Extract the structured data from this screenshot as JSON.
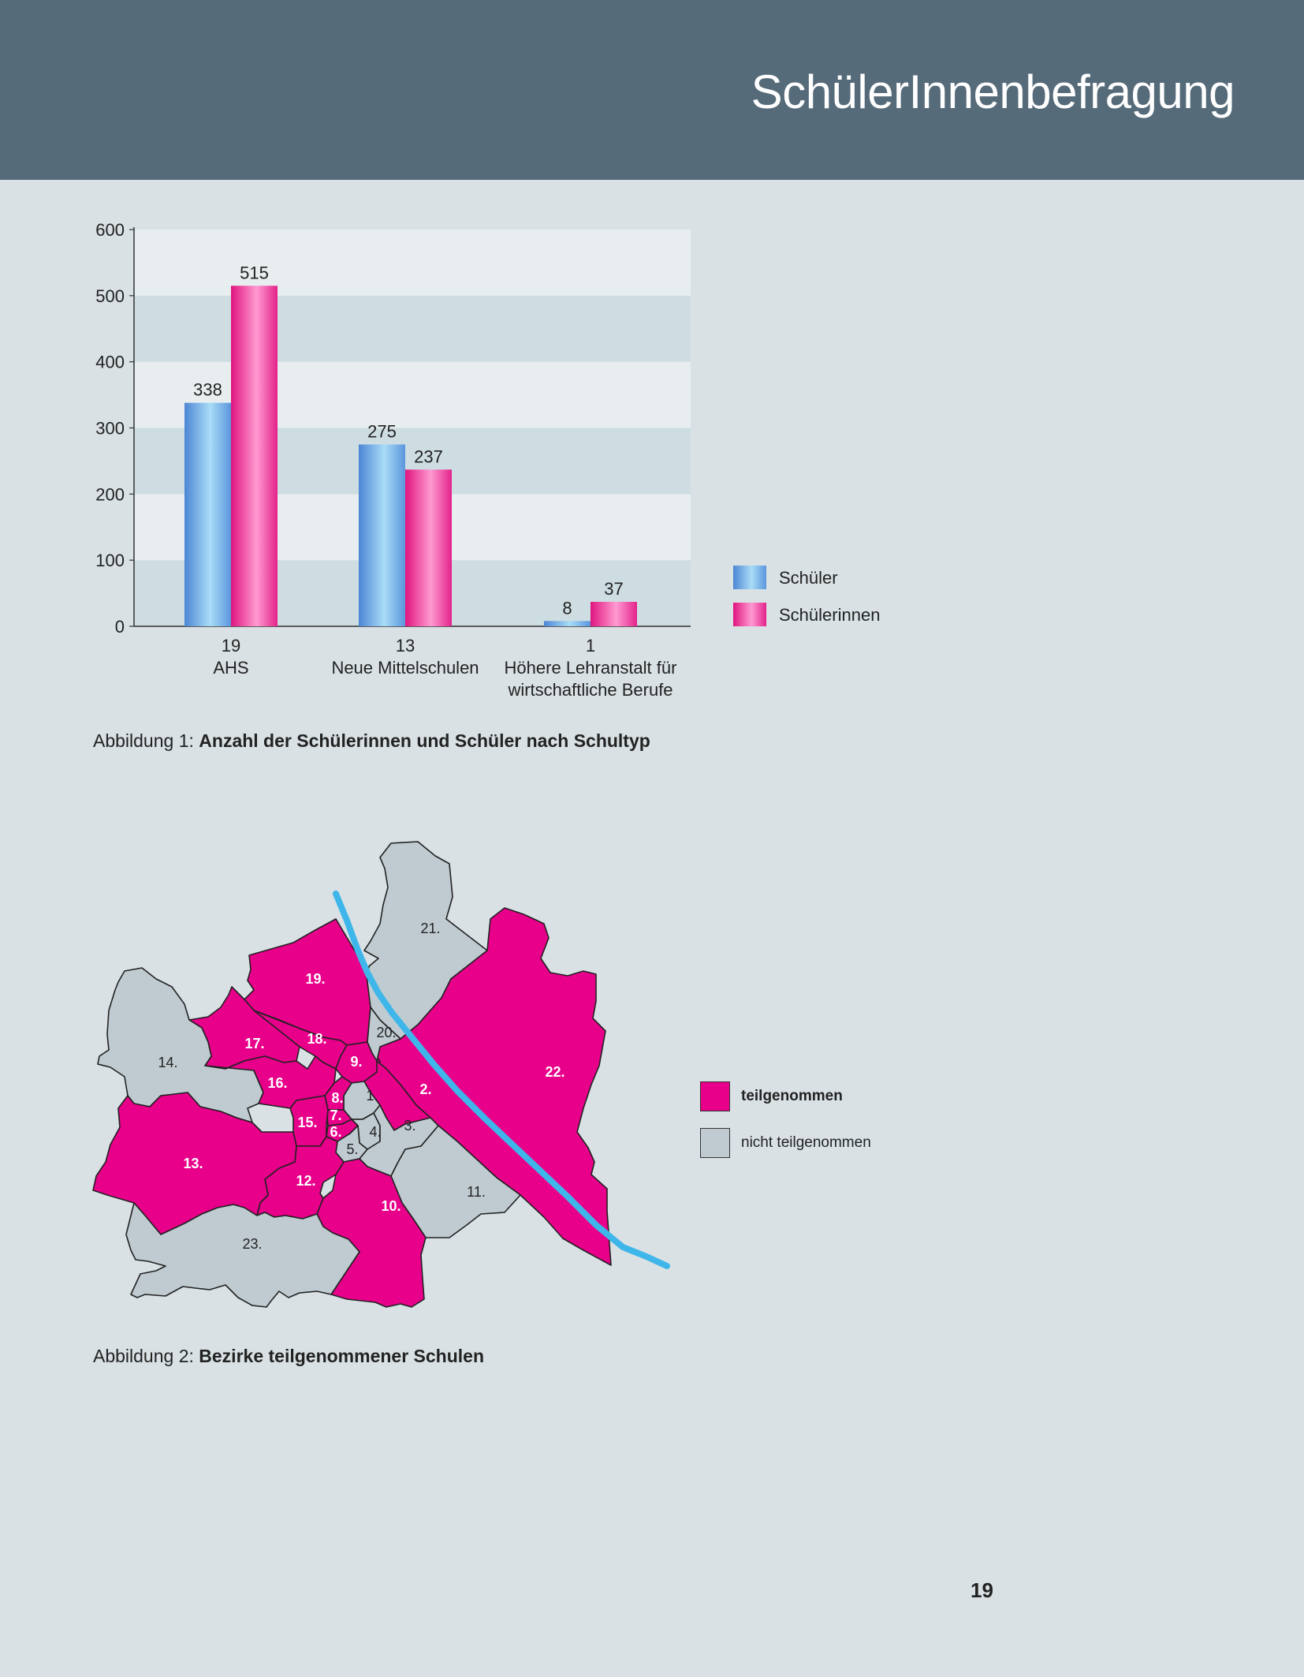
{
  "header": {
    "title": "SchülerInnenbefragung"
  },
  "chart_data": {
    "type": "bar",
    "categories": [
      "19\nAHS",
      "13\nNeue Mittelschulen",
      "1\nHöhere Lehranstalt für\nwirtschaftliche Berufe"
    ],
    "series": [
      {
        "name": "Schüler",
        "values": [
          338,
          275,
          8
        ]
      },
      {
        "name": "Schülerinnen",
        "values": [
          515,
          237,
          37
        ]
      }
    ],
    "yticks": [
      0,
      100,
      200,
      300,
      400,
      500,
      600
    ],
    "ylim": [
      0,
      600
    ],
    "legend_position": "right",
    "grid": "alternating bands"
  },
  "figure1": {
    "prefix": "Abbildung 1: ",
    "title": "Anzahl der Schülerinnen und Schüler nach Schultyp"
  },
  "map": {
    "districts": [
      {
        "label": "1.",
        "participated": false
      },
      {
        "label": "2.",
        "participated": true
      },
      {
        "label": "3.",
        "participated": false
      },
      {
        "label": "4.",
        "participated": false
      },
      {
        "label": "5.",
        "participated": false
      },
      {
        "label": "6.",
        "participated": true
      },
      {
        "label": "7.",
        "participated": true
      },
      {
        "label": "8.",
        "participated": true
      },
      {
        "label": "9.",
        "participated": true
      },
      {
        "label": "10.",
        "participated": true
      },
      {
        "label": "11.",
        "participated": false
      },
      {
        "label": "12.",
        "participated": true
      },
      {
        "label": "13.",
        "participated": true
      },
      {
        "label": "14.",
        "participated": false
      },
      {
        "label": "15.",
        "participated": true
      },
      {
        "label": "16.",
        "participated": true
      },
      {
        "label": "17.",
        "participated": true
      },
      {
        "label": "18.",
        "participated": true
      },
      {
        "label": "19.",
        "participated": true
      },
      {
        "label": "20.",
        "participated": false
      },
      {
        "label": "21.",
        "participated": false
      },
      {
        "label": "22.",
        "participated": true
      },
      {
        "label": "23.",
        "participated": false
      }
    ],
    "legend": {
      "participated": "teilgenommen",
      "not_participated": "nicht teilgenommen"
    },
    "colors": {
      "participated": "#e8008a",
      "not_participated": "#bfcbd1",
      "river": "#3fb6ea"
    }
  },
  "figure2": {
    "prefix": "Abbildung 2: ",
    "title": "Bezirke teilgenommener Schulen"
  },
  "page_number": "19"
}
